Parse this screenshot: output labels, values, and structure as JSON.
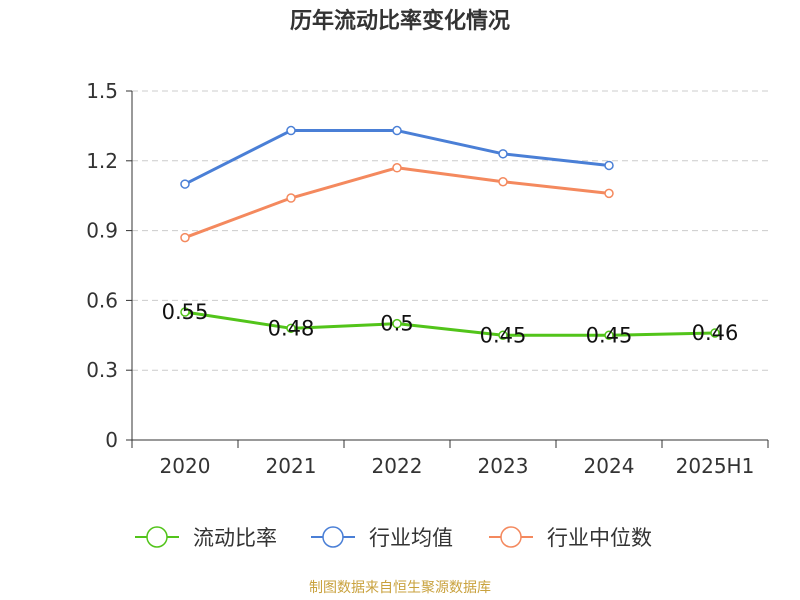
{
  "title": "历年流动比率变化情况",
  "source_note": "制图数据来自恒生聚源数据库",
  "colors": {
    "grid": "#cccccc",
    "axis": "#333333",
    "text": "#333333"
  },
  "chart_data": {
    "type": "line",
    "title": "历年流动比率变化情况",
    "categories": [
      "2020",
      "2021",
      "2022",
      "2023",
      "2024",
      "2025H1"
    ],
    "ylim": [
      0,
      1.5
    ],
    "yticks": [
      "0",
      "0.3",
      "0.6",
      "0.9",
      "1.2",
      "1.5"
    ],
    "grid": "horizontal dashed",
    "legend_position": "bottom",
    "series": [
      {
        "name": "流动比率",
        "color": "#52c41a",
        "values": [
          0.55,
          0.48,
          0.5,
          0.45,
          0.45,
          0.46
        ],
        "labels": [
          "0.55",
          "0.48",
          "0.5",
          "0.45",
          "0.45",
          "0.46"
        ]
      },
      {
        "name": "行业均值",
        "color": "#4a7fd6",
        "values": [
          1.1,
          1.33,
          1.33,
          1.23,
          1.18,
          null
        ]
      },
      {
        "name": "行业中位数",
        "color": "#f4895e",
        "values": [
          0.87,
          1.04,
          1.17,
          1.11,
          1.06,
          null
        ]
      }
    ]
  }
}
